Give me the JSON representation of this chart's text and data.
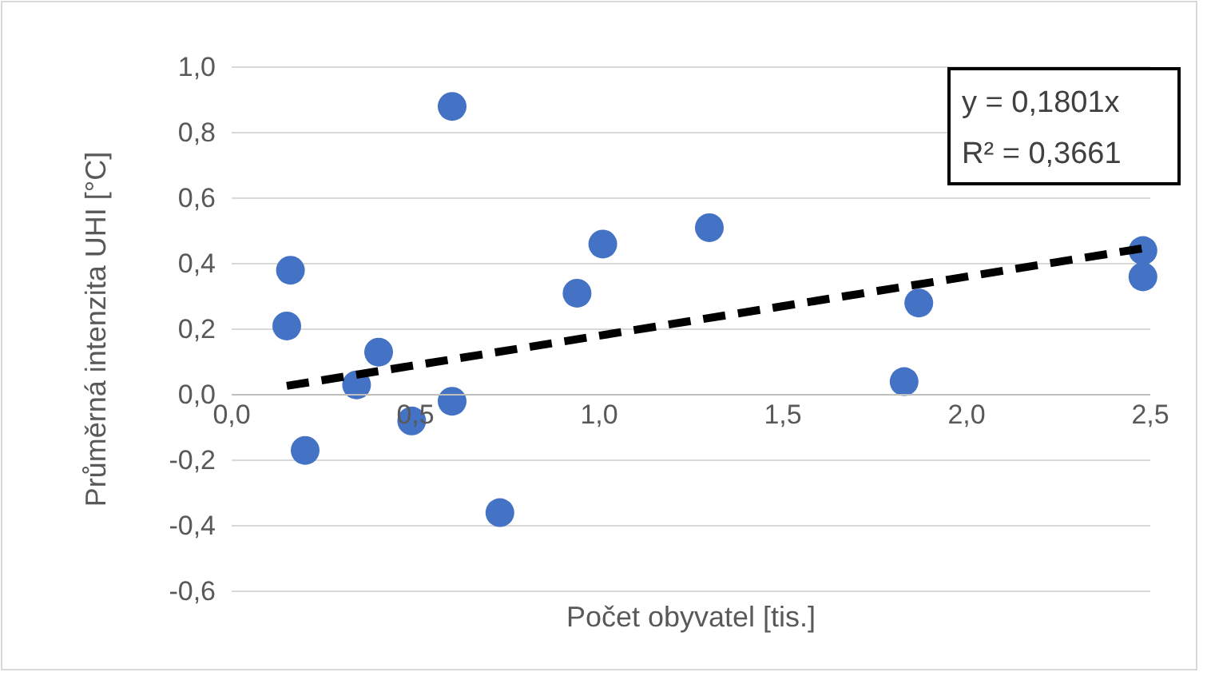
{
  "chart_data": {
    "type": "scatter",
    "xlabel": "Počet obyvatel [tis.]",
    "ylabel": "Průměrná intenzita UHI [°C]",
    "xlim": [
      0,
      2.5
    ],
    "ylim": [
      -0.6,
      1.0
    ],
    "xticks": [
      {
        "value": 0,
        "label": "0,0"
      },
      {
        "value": 0.5,
        "label": "0,5"
      },
      {
        "value": 1,
        "label": "1,0"
      },
      {
        "value": 1.5,
        "label": "1,5"
      },
      {
        "value": 2,
        "label": "2,0"
      },
      {
        "value": 2.5,
        "label": "2,5"
      }
    ],
    "yticks": [
      {
        "value": -0.6,
        "label": "-0,6"
      },
      {
        "value": -0.4,
        "label": "-0,4"
      },
      {
        "value": -0.2,
        "label": "-0,2"
      },
      {
        "value": 0,
        "label": "0,0"
      },
      {
        "value": 0.2,
        "label": "0,2"
      },
      {
        "value": 0.4,
        "label": "0,4"
      },
      {
        "value": 0.6,
        "label": "0,6"
      },
      {
        "value": 0.8,
        "label": "0,8"
      },
      {
        "value": 1,
        "label": "1,0"
      }
    ],
    "grid": "y",
    "series": [
      {
        "marker": "circle",
        "color": "#4472c4",
        "x": [
          0.16,
          0.15,
          0.2,
          0.34,
          0.4,
          0.49,
          0.6,
          0.6,
          0.73,
          0.94,
          1.01,
          1.3,
          1.83,
          1.87,
          2.48,
          2.48
        ],
        "values": [
          0.38,
          0.21,
          -0.17,
          0.03,
          0.13,
          -0.08,
          0.88,
          -0.02,
          -0.36,
          0.31,
          0.46,
          0.51,
          0.04,
          0.28,
          0.36,
          0.44
        ]
      },
      {
        "type": "line",
        "marker": "none",
        "color": "#000000",
        "line_style": "dashed",
        "x": [
          0.15,
          2.48
        ],
        "values": [
          0.027,
          0.447
        ]
      }
    ],
    "annotations": [
      "y = 0,1801x",
      "R² = 0,3661"
    ]
  }
}
